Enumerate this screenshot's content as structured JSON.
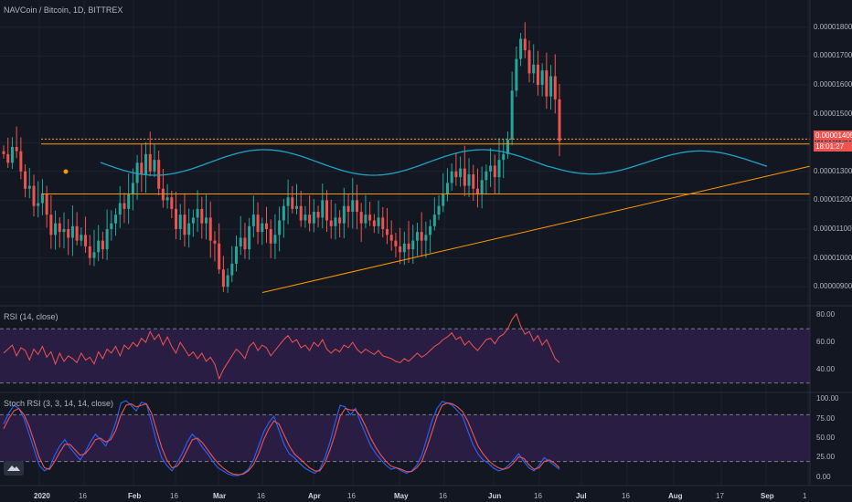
{
  "header": {
    "symbol_title": "NAVCoin / Bitcoin, 1D, BITTREX"
  },
  "price_badge": {
    "last_price": "0.00001405",
    "countdown": "18:01:27",
    "color": "#ef5350"
  },
  "panes": {
    "rsi_title": "RSI (14, close)",
    "stoch_title": "Stoch RSI (3, 3, 14, 14, close)"
  },
  "logo": {
    "icon": "tradingview-cloud-icon"
  },
  "colors": {
    "background": "#131722",
    "up": "#26a69a",
    "down": "#ef5350",
    "trendline": "#ff9800",
    "wave": "#1fa3c4",
    "rsi_line": "#ef5350",
    "rsi_band": "#2a1d44",
    "stoch_k": "#2962ff",
    "stoch_d": "#ef5350"
  },
  "chart_data": [
    {
      "type": "candlestick",
      "title": "NAVCoin / Bitcoin, 1D, BITTREX",
      "y_ticks": [
        "0.00001800",
        "0.00001700",
        "0.00001600",
        "0.00001500",
        "0.00001400",
        "0.00001300",
        "0.00001200",
        "0.00001100",
        "0.00001000",
        "0.00000900"
      ],
      "ylim": [
        8.5e-06,
        1.85e-05
      ],
      "x_ticks": [
        "2020",
        "16",
        "Feb",
        "16",
        "Mar",
        "16",
        "Apr",
        "16",
        "May",
        "16",
        "Jun",
        "16",
        "Jul",
        "16",
        "Aug",
        "17",
        "Sep",
        "1"
      ],
      "x_ticks_bold": [
        "2020",
        "Feb",
        "Mar",
        "Apr",
        "May",
        "Jun",
        "Jul",
        "Aug",
        "Sep"
      ],
      "close_series": [
        1360,
        1330,
        1385,
        1370,
        1300,
        1240,
        1250,
        1180,
        1190,
        1220,
        1150,
        1080,
        1120,
        1090,
        1100,
        1070,
        1110,
        1060,
        1080,
        1040,
        1000,
        1020,
        1060,
        1030,
        1100,
        1120,
        1150,
        1190,
        1170,
        1220,
        1260,
        1330,
        1290,
        1360,
        1300,
        1340,
        1240,
        1200,
        1210,
        1170,
        1100,
        1150,
        1080,
        1120,
        1140,
        1170,
        1120,
        1140,
        1060,
        1050,
        960,
        900,
        940,
        980,
        1040,
        1070,
        1030,
        1110,
        1150,
        1090,
        1120,
        1100,
        1050,
        1080,
        1130,
        1180,
        1210,
        1170,
        1180,
        1130,
        1150,
        1120,
        1160,
        1140,
        1200,
        1130,
        1110,
        1140,
        1120,
        1180,
        1160,
        1200,
        1160,
        1120,
        1150,
        1130,
        1110,
        1140,
        1100,
        1080,
        1060,
        1040,
        1020,
        1050,
        1030,
        1060,
        1090,
        1060,
        1080,
        1110,
        1150,
        1180,
        1220,
        1260,
        1300,
        1280,
        1310,
        1250,
        1290,
        1240,
        1220,
        1270,
        1300,
        1320,
        1280,
        1340,
        1360,
        1410,
        1580,
        1690,
        1760,
        1720,
        1640,
        1670,
        1600,
        1650,
        1560,
        1630,
        1550,
        1405
      ],
      "trendlines": [
        {
          "kind": "horizontal",
          "value": 1412
        },
        {
          "kind": "horizontal",
          "value": 1395
        },
        {
          "kind": "horizontal",
          "value": 1222
        },
        {
          "kind": "diagonal",
          "from": [
            0,
            880
          ],
          "to": [
            1,
            1318
          ]
        }
      ]
    },
    {
      "type": "line",
      "title": "RSI (14, close)",
      "y_ticks": [
        "80.00",
        "60.00",
        "40.00"
      ],
      "ylim": [
        25,
        85
      ],
      "bands": [
        30,
        70
      ],
      "values": [
        52,
        55,
        58,
        50,
        56,
        54,
        47,
        55,
        51,
        57,
        49,
        53,
        44,
        52,
        46,
        50,
        48,
        45,
        52,
        47,
        49,
        44,
        53,
        48,
        55,
        52,
        57,
        50,
        58,
        55,
        60,
        57,
        63,
        60,
        68,
        62,
        66,
        58,
        64,
        57,
        52,
        60,
        55,
        50,
        53,
        48,
        52,
        46,
        49,
        44,
        33,
        40,
        45,
        50,
        55,
        52,
        48,
        57,
        60,
        54,
        58,
        56,
        50,
        54,
        58,
        62,
        65,
        60,
        62,
        56,
        58,
        54,
        60,
        57,
        62,
        55,
        52,
        55,
        53,
        58,
        56,
        60,
        55,
        52,
        55,
        53,
        51,
        54,
        50,
        49,
        48,
        46,
        45,
        48,
        46,
        49,
        52,
        49,
        51,
        54,
        57,
        59,
        62,
        64,
        67,
        62,
        64,
        58,
        61,
        57,
        54,
        58,
        62,
        63,
        59,
        64,
        66,
        70,
        77,
        81,
        72,
        66,
        68,
        61,
        65,
        58,
        62,
        55,
        48,
        45
      ]
    },
    {
      "type": "line",
      "title": "Stoch RSI (3, 3, 14, 14, close)",
      "y_ticks": [
        "100.00",
        "75.00",
        "50.00",
        "25.00",
        "0.00"
      ],
      "ylim": [
        -5,
        105
      ],
      "bands": [
        20,
        80
      ],
      "series": [
        {
          "values": [
            68,
            82,
            92,
            88,
            75,
            55,
            35,
            15,
            8,
            12,
            28,
            40,
            48,
            38,
            30,
            22,
            32,
            45,
            55,
            48,
            40,
            52,
            70,
            95,
            98,
            92,
            85,
            96,
            94,
            70,
            45,
            25,
            15,
            8,
            18,
            30,
            45,
            55,
            48,
            38,
            30,
            20,
            12,
            8,
            4,
            2,
            2,
            5,
            10,
            22,
            40,
            58,
            70,
            78,
            60,
            42,
            30,
            25,
            18,
            12,
            8,
            5,
            10,
            25,
            45,
            70,
            92,
            90,
            80,
            88,
            70,
            55,
            40,
            30,
            22,
            15,
            10,
            12,
            8,
            5,
            8,
            15,
            28,
            50,
            72,
            88,
            97,
            95,
            92,
            85,
            78,
            60,
            42,
            30,
            22,
            18,
            12,
            8,
            10,
            15,
            22,
            30,
            20,
            12,
            8,
            15,
            25,
            20,
            15,
            10
          ]
        },
        {
          "values": [
            62,
            75,
            85,
            88,
            80,
            65,
            45,
            25,
            12,
            10,
            20,
            32,
            42,
            42,
            35,
            28,
            30,
            38,
            48,
            50,
            45,
            48,
            60,
            80,
            92,
            94,
            90,
            92,
            94,
            82,
            60,
            38,
            22,
            12,
            14,
            22,
            35,
            48,
            50,
            44,
            35,
            26,
            18,
            12,
            7,
            4,
            3,
            4,
            8,
            16,
            30,
            48,
            62,
            72,
            68,
            54,
            40,
            30,
            24,
            18,
            12,
            8,
            8,
            18,
            35,
            55,
            78,
            88,
            86,
            86,
            78,
            65,
            50,
            38,
            28,
            20,
            14,
            12,
            10,
            7,
            7,
            12,
            20,
            38,
            58,
            78,
            92,
            95,
            94,
            90,
            84,
            72,
            56,
            40,
            30,
            22,
            16,
            12,
            10,
            12,
            18,
            26,
            24,
            16,
            10,
            12,
            20,
            22,
            18,
            12
          ]
        }
      ]
    }
  ]
}
